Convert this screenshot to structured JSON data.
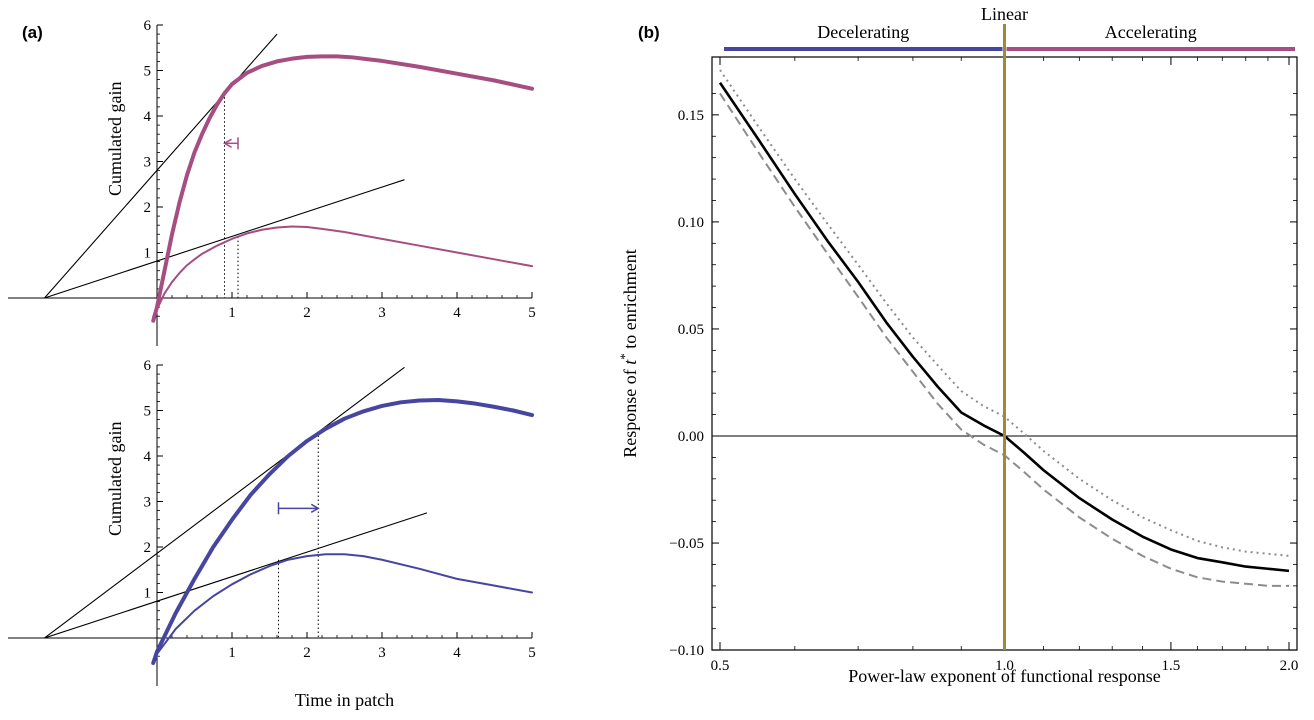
{
  "panel_labels": {
    "a": "(a)",
    "b": "(b)"
  },
  "colors": {
    "accelerating": "#a64d82",
    "decelerating": "#4646a0",
    "linear": "#a08a3a",
    "black": "#000000",
    "grey": "#8c8c8c"
  },
  "chart_data": [
    {
      "id": "a-top",
      "type": "line",
      "ylabel": "Cumulated gain",
      "xlabel": "",
      "xlim": [
        -2,
        5
      ],
      "ylim": [
        -0.5,
        6
      ],
      "xticks": [
        "1",
        "2",
        "3",
        "4",
        "5"
      ],
      "yticks": [
        "1",
        "2",
        "3",
        "4",
        "5",
        "6"
      ],
      "series": [
        {
          "color": "accelerating",
          "width": "thick",
          "x": [
            -0.05,
            0,
            0.1,
            0.2,
            0.3,
            0.4,
            0.5,
            0.6,
            0.7,
            0.8,
            0.9,
            1.0,
            1.2,
            1.4,
            1.6,
            1.8,
            2.0,
            2.2,
            2.4,
            2.6,
            2.8,
            3.0,
            3.5,
            4.0,
            4.5,
            5.0
          ],
          "y": [
            -0.5,
            -0.2,
            0.6,
            1.4,
            2.1,
            2.7,
            3.2,
            3.6,
            3.95,
            4.25,
            4.5,
            4.7,
            4.95,
            5.1,
            5.2,
            5.26,
            5.3,
            5.31,
            5.31,
            5.29,
            5.25,
            5.21,
            5.08,
            4.93,
            4.78,
            4.6
          ]
        },
        {
          "color": "accelerating",
          "width": "thin",
          "x": [
            -0.05,
            0,
            0.1,
            0.2,
            0.3,
            0.4,
            0.5,
            0.6,
            0.8,
            1.0,
            1.2,
            1.4,
            1.6,
            1.8,
            2.0,
            2.2,
            2.5,
            3.0,
            3.5,
            4.0,
            4.5,
            5.0
          ],
          "y": [
            -0.4,
            -0.25,
            0.1,
            0.35,
            0.55,
            0.72,
            0.85,
            0.97,
            1.15,
            1.3,
            1.42,
            1.5,
            1.55,
            1.57,
            1.56,
            1.52,
            1.45,
            1.3,
            1.15,
            1.0,
            0.85,
            0.7
          ]
        }
      ],
      "tangents": [
        {
          "from": [
            -1.5,
            0
          ],
          "to": [
            1.6,
            5.8
          ]
        },
        {
          "from": [
            -1.5,
            0
          ],
          "to": [
            3.3,
            2.6
          ]
        }
      ],
      "dotted_verticals": [
        {
          "x": 0.9,
          "y": 4.5
        },
        {
          "x": 1.08,
          "y": 1.35
        }
      ],
      "arrow": {
        "from_x": 1.08,
        "to_x": 0.9,
        "y": 3.4,
        "direction": "left"
      }
    },
    {
      "id": "a-bottom",
      "type": "line",
      "ylabel": "Cumulated gain",
      "xlabel": "Time in patch",
      "xlim": [
        -2,
        5
      ],
      "ylim": [
        -0.5,
        6
      ],
      "xticks": [
        "1",
        "2",
        "3",
        "4",
        "5"
      ],
      "yticks": [
        "1",
        "2",
        "3",
        "4",
        "5",
        "6"
      ],
      "series": [
        {
          "color": "decelerating",
          "width": "thick",
          "x": [
            -0.05,
            0,
            0.25,
            0.5,
            0.75,
            1.0,
            1.25,
            1.5,
            1.75,
            2.0,
            2.25,
            2.5,
            2.75,
            3.0,
            3.25,
            3.5,
            3.75,
            4.0,
            4.25,
            4.5,
            4.75,
            5.0
          ],
          "y": [
            -0.55,
            -0.3,
            0.55,
            1.3,
            2.0,
            2.6,
            3.15,
            3.6,
            4.0,
            4.33,
            4.6,
            4.82,
            4.98,
            5.1,
            5.18,
            5.22,
            5.23,
            5.2,
            5.15,
            5.08,
            5.0,
            4.9
          ]
        },
        {
          "color": "decelerating",
          "width": "thin",
          "x": [
            -0.05,
            0,
            0.25,
            0.5,
            0.75,
            1.0,
            1.25,
            1.5,
            1.75,
            2.0,
            2.25,
            2.5,
            2.75,
            3.0,
            3.5,
            4.0,
            4.5,
            5.0
          ],
          "y": [
            -0.55,
            -0.35,
            0.2,
            0.6,
            0.92,
            1.18,
            1.4,
            1.58,
            1.72,
            1.8,
            1.84,
            1.84,
            1.8,
            1.72,
            1.52,
            1.3,
            1.15,
            1.0
          ]
        }
      ],
      "tangents": [
        {
          "from": [
            -1.5,
            0
          ],
          "to": [
            3.3,
            5.95
          ]
        },
        {
          "from": [
            -1.5,
            0
          ],
          "to": [
            3.6,
            2.75
          ]
        }
      ],
      "dotted_verticals": [
        {
          "x": 1.62,
          "y": 1.72
        },
        {
          "x": 2.15,
          "y": 4.45
        }
      ],
      "arrow": {
        "from_x": 1.62,
        "to_x": 2.15,
        "y": 2.85,
        "direction": "right"
      }
    },
    {
      "id": "b",
      "type": "line",
      "xlabel": "Power-law exponent of functional response",
      "ylabel_parts": {
        "prefix": "Response of ",
        "var": "t",
        "sup": "*",
        "suffix": " to enrichment"
      },
      "xlim": [
        0.5,
        2.0
      ],
      "ylim": [
        -0.1,
        0.175
      ],
      "xticks": [
        {
          "v": 0.5,
          "label": "0.5"
        },
        {
          "v": 1.0,
          "label": "1.0"
        },
        {
          "v": 1.5,
          "label": "1.5"
        },
        {
          "v": 2.0,
          "label": "2.0"
        }
      ],
      "yticks": [
        {
          "v": 0.15,
          "label": "0.15"
        },
        {
          "v": 0.1,
          "label": "0.10"
        },
        {
          "v": 0.05,
          "label": "0.05"
        },
        {
          "v": 0.0,
          "label": "0.00"
        },
        {
          "v": -0.05,
          "label": "−0.05"
        },
        {
          "v": -0.1,
          "label": "−0.10"
        }
      ],
      "x_scale": "log",
      "vline": {
        "x": 1.0,
        "label": "Linear",
        "color": "linear"
      },
      "hline": {
        "y": 0.0
      },
      "regions": [
        {
          "label": "Decelerating",
          "from": 0.5,
          "to": 1.0,
          "color": "decelerating"
        },
        {
          "label": "Accelerating",
          "from": 1.0,
          "to": 2.0,
          "color": "accelerating"
        }
      ],
      "series": [
        {
          "style": "solid",
          "color": "black",
          "x": [
            0.5,
            0.55,
            0.6,
            0.65,
            0.7,
            0.75,
            0.8,
            0.85,
            0.9,
            0.95,
            1.0,
            1.05,
            1.1,
            1.2,
            1.3,
            1.4,
            1.5,
            1.6,
            1.7,
            1.8,
            1.9,
            2.0
          ],
          "y": [
            0.165,
            0.138,
            0.113,
            0.091,
            0.072,
            0.053,
            0.037,
            0.023,
            0.011,
            0.005,
            0.0,
            -0.008,
            -0.016,
            -0.029,
            -0.039,
            -0.047,
            -0.053,
            -0.057,
            -0.059,
            -0.061,
            -0.062,
            -0.063
          ]
        },
        {
          "style": "dotted",
          "color": "grey",
          "x": [
            0.5,
            0.55,
            0.6,
            0.65,
            0.7,
            0.75,
            0.8,
            0.85,
            0.9,
            0.95,
            1.0,
            1.05,
            1.1,
            1.2,
            1.3,
            1.4,
            1.5,
            1.6,
            1.7,
            1.8,
            1.9,
            2.0
          ],
          "y": [
            0.171,
            0.144,
            0.12,
            0.099,
            0.08,
            0.062,
            0.046,
            0.033,
            0.021,
            0.014,
            0.009,
            0.001,
            -0.007,
            -0.02,
            -0.03,
            -0.038,
            -0.044,
            -0.049,
            -0.052,
            -0.054,
            -0.055,
            -0.056
          ]
        },
        {
          "style": "dashed",
          "color": "grey",
          "x": [
            0.5,
            0.55,
            0.6,
            0.65,
            0.7,
            0.75,
            0.8,
            0.85,
            0.9,
            0.95,
            1.0,
            1.05,
            1.1,
            1.2,
            1.3,
            1.4,
            1.5,
            1.6,
            1.7,
            1.8,
            1.9,
            2.0
          ],
          "y": [
            0.16,
            0.132,
            0.107,
            0.085,
            0.065,
            0.046,
            0.03,
            0.015,
            0.003,
            -0.004,
            -0.009,
            -0.017,
            -0.025,
            -0.038,
            -0.048,
            -0.056,
            -0.062,
            -0.066,
            -0.068,
            -0.069,
            -0.07,
            -0.07
          ]
        }
      ]
    }
  ]
}
